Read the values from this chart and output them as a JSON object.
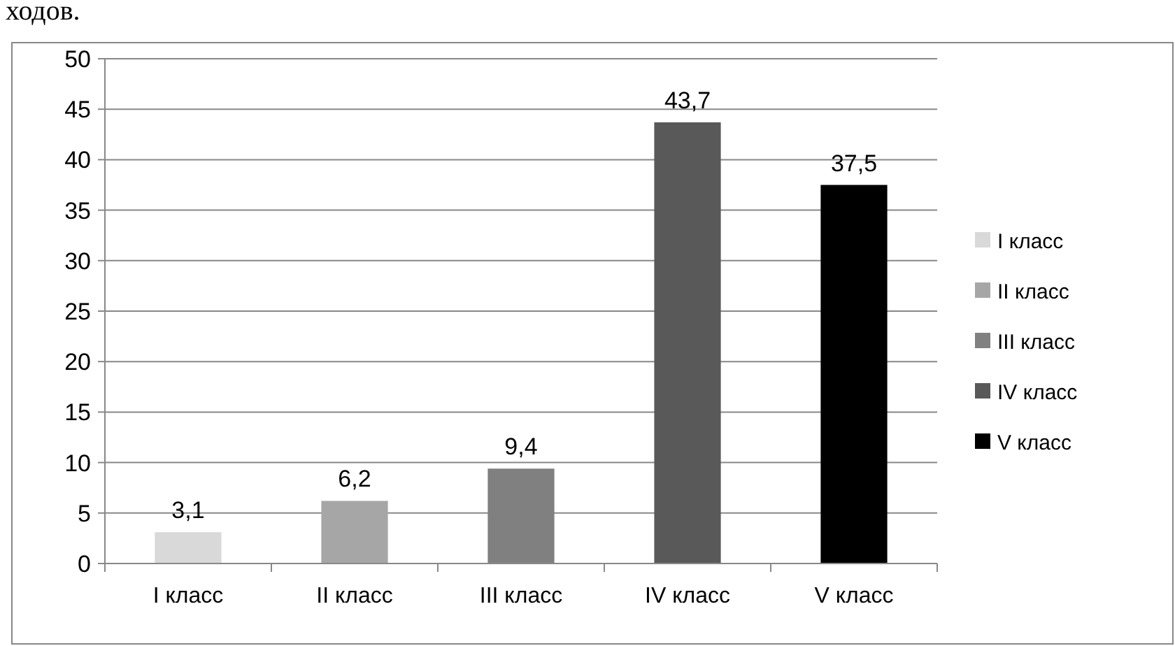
{
  "chart_data": {
    "type": "bar",
    "categories": [
      "I класс",
      "II класс",
      "III класс",
      "IV класс",
      "V класс"
    ],
    "series": [
      {
        "name": "I класс",
        "color": "#d9d9d9",
        "values": [
          3.1,
          null,
          null,
          null,
          null
        ],
        "value_labels": [
          "3,1",
          null,
          null,
          null,
          null
        ]
      },
      {
        "name": "II класс",
        "color": "#a6a6a6",
        "values": [
          null,
          6.2,
          null,
          null,
          null
        ],
        "value_labels": [
          null,
          "6,2",
          null,
          null,
          null
        ]
      },
      {
        "name": "III класс",
        "color": "#808080",
        "values": [
          null,
          null,
          9.4,
          null,
          null
        ],
        "value_labels": [
          null,
          null,
          "9,4",
          null,
          null
        ]
      },
      {
        "name": "IV класс",
        "color": "#595959",
        "values": [
          null,
          null,
          null,
          43.7,
          null
        ],
        "value_labels": [
          null,
          null,
          null,
          "43,7",
          null
        ]
      },
      {
        "name": "V класс",
        "color": "#000000",
        "values": [
          null,
          null,
          null,
          null,
          37.5
        ],
        "value_labels": [
          null,
          null,
          null,
          null,
          "37,5"
        ]
      }
    ],
    "ylim": [
      0,
      50
    ],
    "yticks": [
      0,
      5,
      10,
      15,
      20,
      25,
      30,
      35,
      40,
      45,
      50
    ],
    "grid": "y",
    "legend": "right",
    "annotations": [
      "ходов."
    ]
  }
}
